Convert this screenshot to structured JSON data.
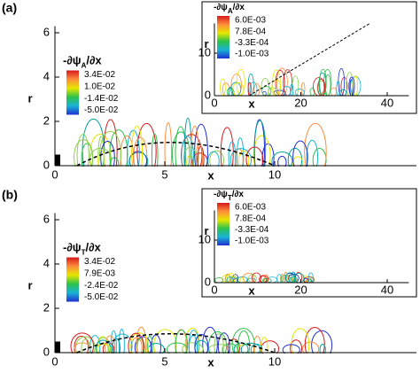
{
  "panels": [
    {
      "label": "(a)",
      "main": {
        "xticks": [
          0,
          5,
          10
        ],
        "yticks": [
          0,
          2,
          4,
          6
        ],
        "xlabel": "x",
        "ylabel": "r",
        "legend": {
          "title": {
            "main": "-∂ψ",
            "sub": "A",
            "tail": "/∂x"
          },
          "labels": [
            "3.4E-02",
            "1.0E-02",
            "-1.4E-02",
            "-5.0E-02"
          ]
        }
      },
      "inset": {
        "xticks": [
          0,
          20,
          40
        ],
        "yticks": [
          0,
          10
        ],
        "xlabel": "x",
        "ylabel": "r",
        "legend": {
          "title": {
            "main": "-∂ψ",
            "sub": "A",
            "tail": "/∂x"
          },
          "labels": [
            "6.0E-03",
            "7.8E-04",
            "-3.3E-04",
            "-1.0E-03"
          ]
        }
      }
    },
    {
      "label": "(b)",
      "main": {
        "xticks": [
          0,
          5,
          10
        ],
        "yticks": [
          0,
          2,
          4,
          6
        ],
        "xlabel": "x",
        "ylabel": "r",
        "legend": {
          "title": {
            "main": "-∂ψ",
            "sub": "T",
            "tail": "/∂x"
          },
          "labels": [
            "3.4E-02",
            "7.9E-03",
            "-2.4E-02",
            "-5.0E-02"
          ]
        }
      },
      "inset": {
        "xticks": [
          0,
          20,
          40
        ],
        "yticks": [
          0,
          10
        ],
        "xlabel": "x",
        "ylabel": "r",
        "legend": {
          "title": {
            "main": "-∂ψ",
            "sub": "T",
            "tail": "/∂x"
          },
          "labels": [
            "6.0E-03",
            "7.8E-04",
            "-3.3E-04",
            "-1.0E-03"
          ]
        }
      }
    }
  ]
}
